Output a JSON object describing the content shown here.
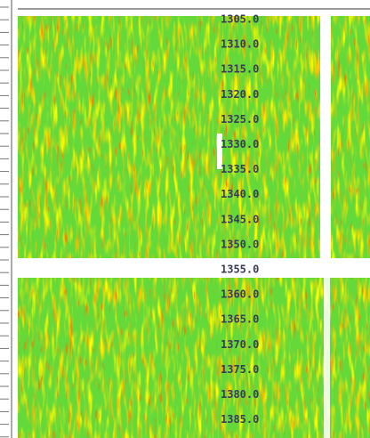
{
  "depth_track": {
    "labels": [
      "1305.0",
      "1310.0",
      "1315.0",
      "1320.0",
      "1325.0",
      "1330.0",
      "1335.0",
      "1340.0",
      "1345.0",
      "1350.0",
      "1355.0",
      "1360.0",
      "1365.0",
      "1370.0",
      "1375.0",
      "1380.0",
      "1385.0"
    ]
  }
}
